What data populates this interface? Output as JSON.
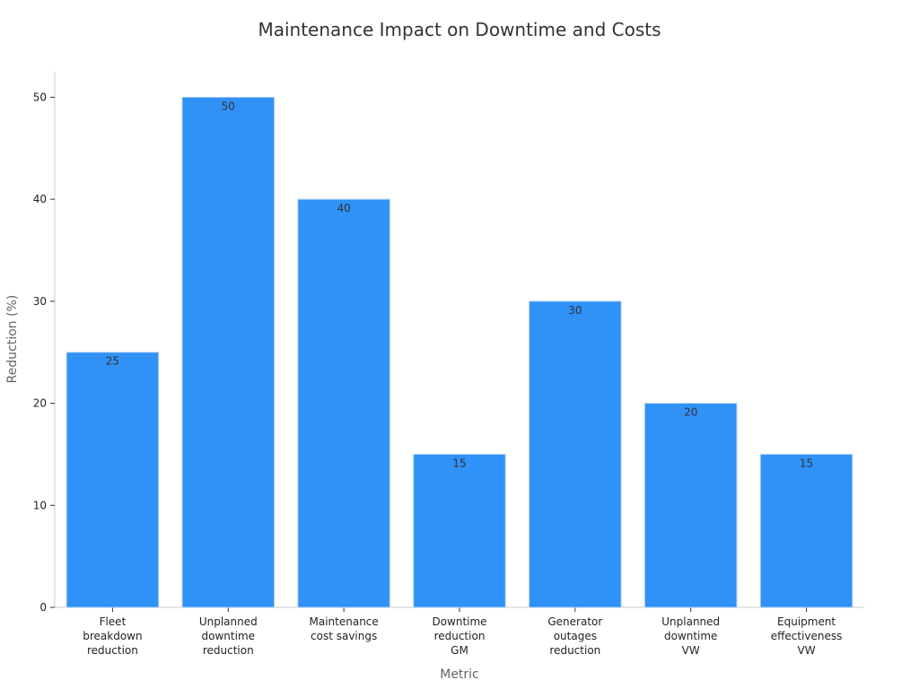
{
  "chart_data": {
    "type": "bar",
    "title": "Maintenance Impact on Downtime and Costs",
    "xlabel": "Metric",
    "ylabel": "Reduction (%)",
    "ylim": [
      0,
      52.5
    ],
    "yticks": [
      "0",
      "10",
      "20",
      "30",
      "40",
      "50"
    ],
    "grid": false,
    "bar_color": "#3091f7",
    "categories": [
      [
        "Fleet",
        "breakdown",
        "reduction"
      ],
      [
        "Unplanned",
        "downtime",
        "reduction"
      ],
      [
        "Maintenance",
        "cost savings"
      ],
      [
        "Downtime",
        "reduction",
        "GM"
      ],
      [
        "Generator",
        "outages",
        "reduction"
      ],
      [
        "Unplanned",
        "downtime",
        "VW"
      ],
      [
        "Equipment",
        "effectiveness",
        "VW"
      ]
    ],
    "values": [
      25,
      50,
      40,
      15,
      30,
      20,
      15
    ]
  }
}
